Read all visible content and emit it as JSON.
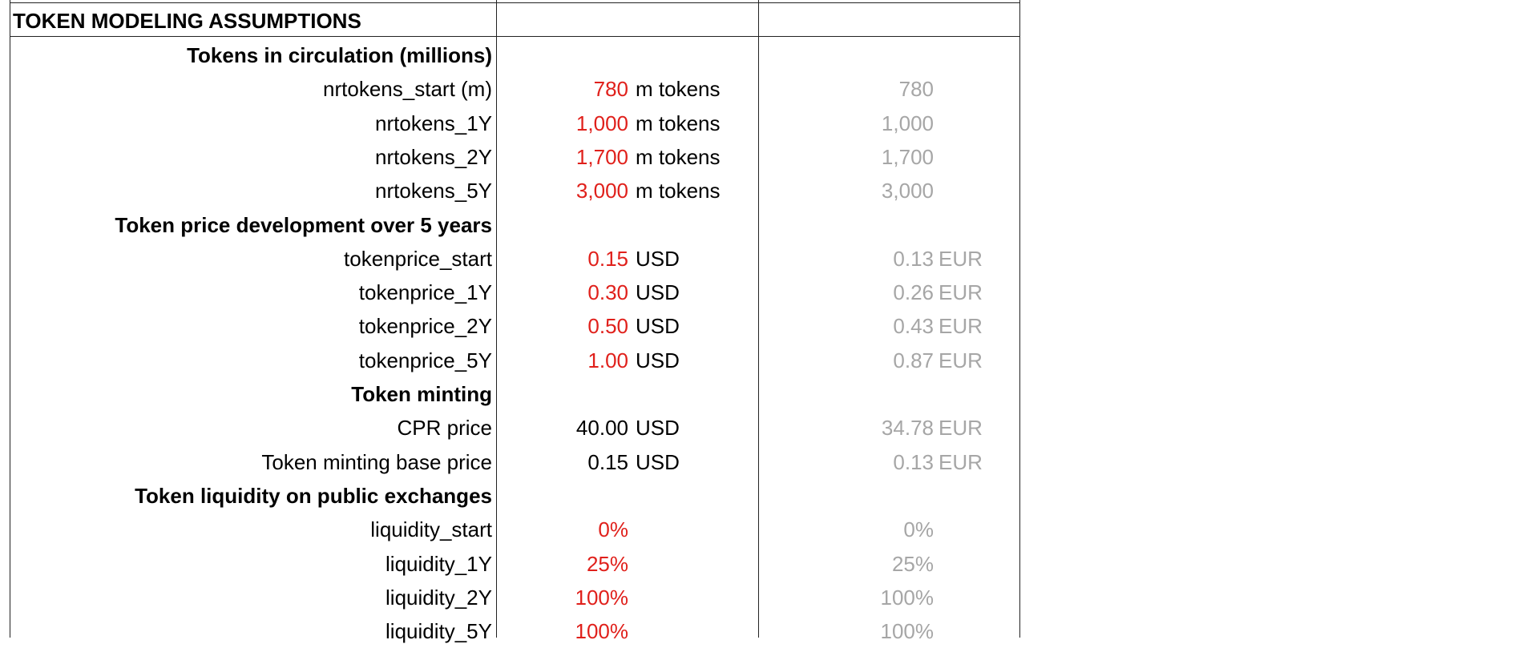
{
  "header": {
    "title": "TOKEN MODELING ASSUMPTIONS"
  },
  "colors": {
    "input": "#e0201b",
    "reference": "#a6a6a6",
    "text": "#000000"
  },
  "rows": [
    {
      "type": "section",
      "label": "Tokens in circulation (millions)"
    },
    {
      "type": "item",
      "label": "nrtokens_start (m)",
      "value": "780",
      "unit": "m tokens",
      "ref": "780",
      "ref_unit": "",
      "input": true
    },
    {
      "type": "item",
      "label": "nrtokens_1Y",
      "value": "1,000",
      "unit": "m tokens",
      "ref": "1,000",
      "ref_unit": "",
      "input": true
    },
    {
      "type": "item",
      "label": "nrtokens_2Y",
      "value": "1,700",
      "unit": "m tokens",
      "ref": "1,700",
      "ref_unit": "",
      "input": true
    },
    {
      "type": "item",
      "label": "nrtokens_5Y",
      "value": "3,000",
      "unit": "m tokens",
      "ref": "3,000",
      "ref_unit": "",
      "input": true
    },
    {
      "type": "section",
      "label": "Token price development over 5 years"
    },
    {
      "type": "item",
      "label": "tokenprice_start",
      "value": "0.15",
      "unit": "USD",
      "ref": "0.13",
      "ref_unit": "EUR",
      "input": true
    },
    {
      "type": "item",
      "label": "tokenprice_1Y",
      "value": "0.30",
      "unit": "USD",
      "ref": "0.26",
      "ref_unit": "EUR",
      "input": true
    },
    {
      "type": "item",
      "label": "tokenprice_2Y",
      "value": "0.50",
      "unit": "USD",
      "ref": "0.43",
      "ref_unit": "EUR",
      "input": true
    },
    {
      "type": "item",
      "label": "tokenprice_5Y",
      "value": "1.00",
      "unit": "USD",
      "ref": "0.87",
      "ref_unit": "EUR",
      "input": true
    },
    {
      "type": "section",
      "label": "Token minting"
    },
    {
      "type": "item",
      "label": "CPR price",
      "value": "40.00",
      "unit": "USD",
      "ref": "34.78",
      "ref_unit": "EUR",
      "input": false
    },
    {
      "type": "item",
      "label": "Token minting base price",
      "value": "0.15",
      "unit": "USD",
      "ref": "0.13",
      "ref_unit": "EUR",
      "input": false
    },
    {
      "type": "section",
      "label": "Token liquidity on public exchanges"
    },
    {
      "type": "item",
      "label": "liquidity_start",
      "value": "0%",
      "unit": "",
      "ref": "0%",
      "ref_unit": "",
      "input": true
    },
    {
      "type": "item",
      "label": "liquidity_1Y",
      "value": "25%",
      "unit": "",
      "ref": "25%",
      "ref_unit": "",
      "input": true
    },
    {
      "type": "item",
      "label": "liquidity_2Y",
      "value": "100%",
      "unit": "",
      "ref": "100%",
      "ref_unit": "",
      "input": true
    },
    {
      "type": "item",
      "label": "liquidity_5Y",
      "value": "100%",
      "unit": "",
      "ref": "100%",
      "ref_unit": "",
      "input": true
    }
  ]
}
